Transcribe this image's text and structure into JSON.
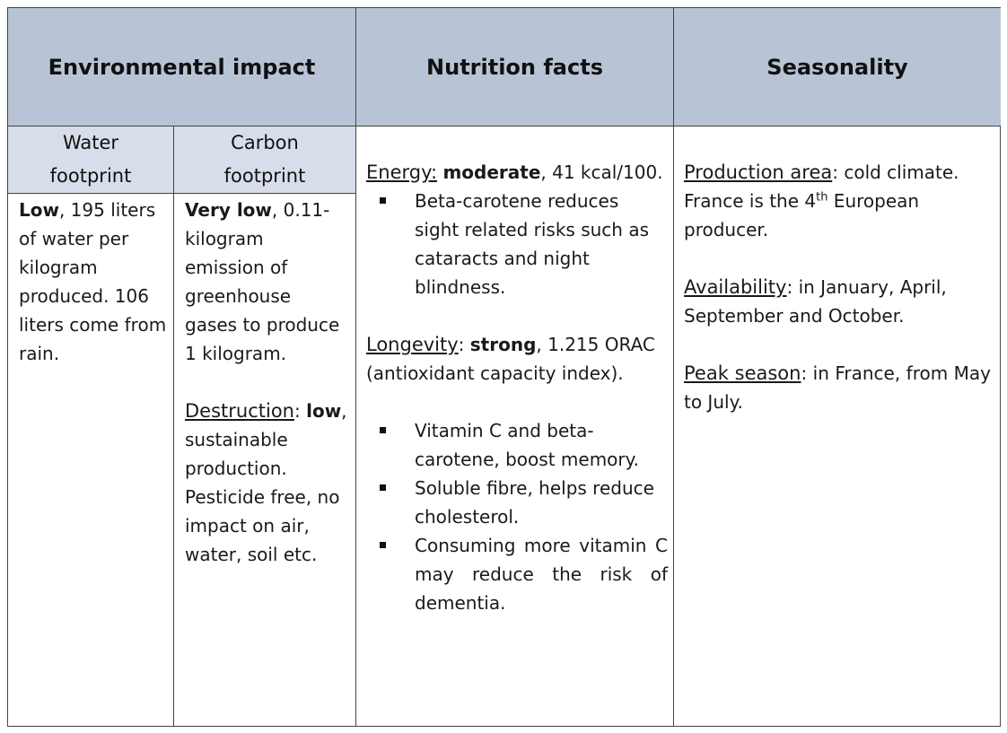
{
  "headers": {
    "environmental": "Environmental impact",
    "nutrition": "Nutrition facts",
    "seasonality": "Seasonality"
  },
  "subheaders": {
    "water_line1": "Water",
    "water_line2": "footprint",
    "carbon_line1": "Carbon",
    "carbon_line2": "footprint"
  },
  "water": {
    "bold": "Low",
    "rest": ", 195 liters of water per kilogram produced. 106 liters come from rain."
  },
  "carbon": {
    "bold": "Very low",
    "rest": ", 0.11-kilogram emission of greenhouse gases to produce 1 kilogram.",
    "destruction_label": "Destruction",
    "destruction_colon": ":",
    "destruction_bold": "low",
    "destruction_rest": ", sustainable production. Pesticide free, no impact on air, water, soil etc."
  },
  "nutrition": {
    "energy_label": "Energy:",
    "energy_bold": "moderate",
    "energy_rest": ", 41 kcal/100.",
    "energy_bullets": [
      "Beta-carotene reduces sight related risks such as cataracts and night blindness."
    ],
    "longevity_label": "Longevity",
    "longevity_colon": ":",
    "longevity_bold": "strong",
    "longevity_rest": ", 1.215 ORAC (antioxidant capacity index).",
    "longevity_bullets": [
      "Vitamin C and beta-carotene, boost memory.",
      "Soluble fibre, helps reduce cholesterol.",
      "Consuming more vitamin C may reduce the risk of dementia."
    ]
  },
  "seasonality": {
    "production_label": "Production area",
    "production_text_a": ": cold climate. France is the 4",
    "production_sup": "th",
    "production_text_b": " European producer.",
    "availability_label": "Availability",
    "availability_text": ": in January, April, September and October.",
    "peak_label": "Peak season",
    "peak_text": ": in France, from May to July."
  }
}
